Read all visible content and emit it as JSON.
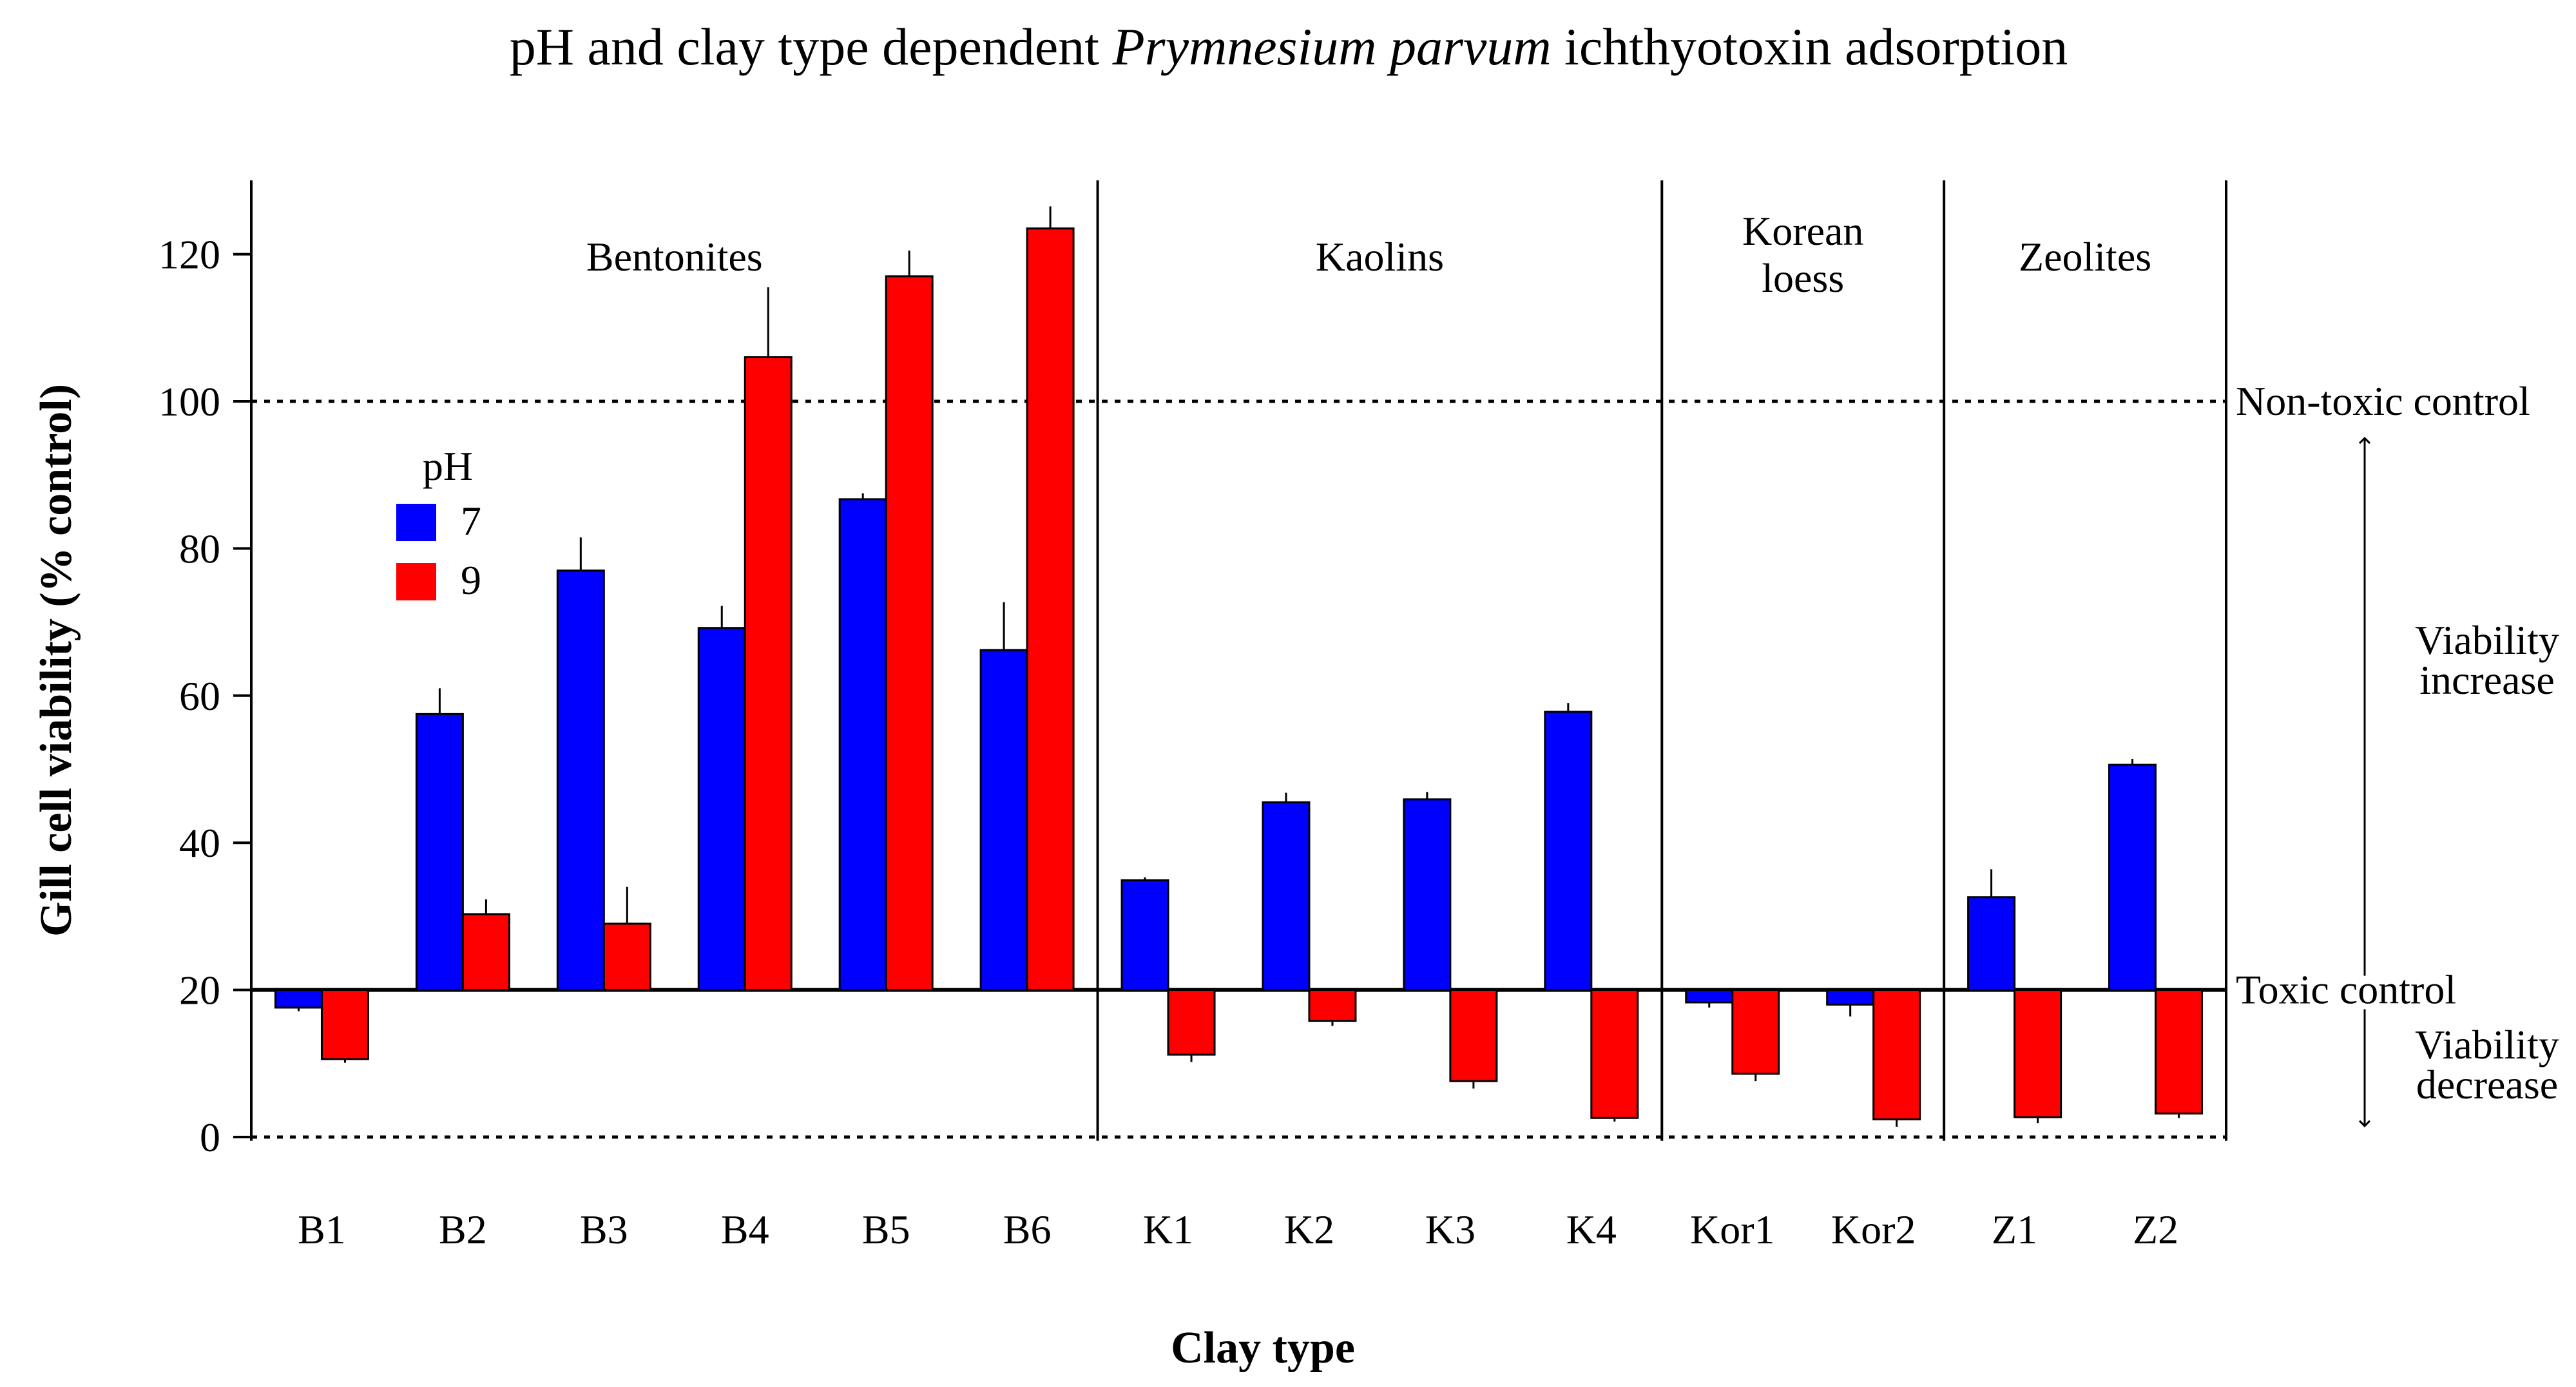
{
  "chart_data": {
    "type": "bar",
    "title_parts": [
      "pH and clay type dependent ",
      "Prymnesium parvum",
      " ichthyotoxin adsorption"
    ],
    "xlabel": "Clay type",
    "ylabel": "Gill cell viability (% control)",
    "ylim": [
      0,
      130
    ],
    "yticks": [
      "0",
      "20",
      "40",
      "60",
      "80",
      "100",
      "120"
    ],
    "baseline": 20,
    "categories": [
      "B1",
      "B2",
      "B3",
      "B4",
      "B5",
      "B6",
      "K1",
      "K2",
      "K3",
      "K4",
      "Kor1",
      "Kor2",
      "Z1",
      "Z2"
    ],
    "legend": {
      "title": "pH",
      "placement": "upper-left"
    },
    "series": [
      {
        "name": "7",
        "color": "#0000ff",
        "values": [
          17.6,
          57.5,
          77.0,
          69.2,
          86.7,
          66.2,
          34.9,
          45.5,
          45.9,
          57.8,
          18.3,
          18.0,
          32.6,
          50.6
        ],
        "errors": [
          0.5,
          3.5,
          4.5,
          3.0,
          0.8,
          6.5,
          0.4,
          1.3,
          1.0,
          1.2,
          0.7,
          1.6,
          3.8,
          0.8
        ]
      },
      {
        "name": "9",
        "color": "#ff0000",
        "values": [
          10.6,
          30.3,
          29.0,
          106.0,
          117.0,
          123.5,
          11.2,
          15.8,
          7.6,
          2.6,
          8.6,
          2.4,
          2.7,
          3.2
        ],
        "errors": [
          0.5,
          2.0,
          5.0,
          9.5,
          3.5,
          3.0,
          1.0,
          0.7,
          1.0,
          0.5,
          1.0,
          1.0,
          0.8,
          0.6
        ]
      }
    ],
    "groups": [
      {
        "name": "Bentonites",
        "lines": [
          "Bentonites"
        ],
        "members": [
          "B1",
          "B2",
          "B3",
          "B4",
          "B5",
          "B6"
        ]
      },
      {
        "name": "Kaolins",
        "lines": [
          "Kaolins"
        ],
        "members": [
          "K1",
          "K2",
          "K3",
          "K4"
        ]
      },
      {
        "name": "Korean loess",
        "lines": [
          "Korean",
          "loess"
        ],
        "members": [
          "Kor1",
          "Kor2"
        ]
      },
      {
        "name": "Zeolites",
        "lines": [
          "Zeolites"
        ],
        "members": [
          "Z1",
          "Z2"
        ]
      }
    ],
    "reference_lines": [
      {
        "value": 100,
        "label": "Non-toxic control",
        "style": "dotted"
      },
      {
        "value": 20,
        "label": "Toxic control",
        "style": "solid"
      },
      {
        "value": 0,
        "label": "",
        "style": "dotted"
      }
    ],
    "annotations": {
      "increase": [
        "Viability",
        "increase"
      ],
      "decrease": [
        "Viability",
        "decrease"
      ]
    }
  }
}
